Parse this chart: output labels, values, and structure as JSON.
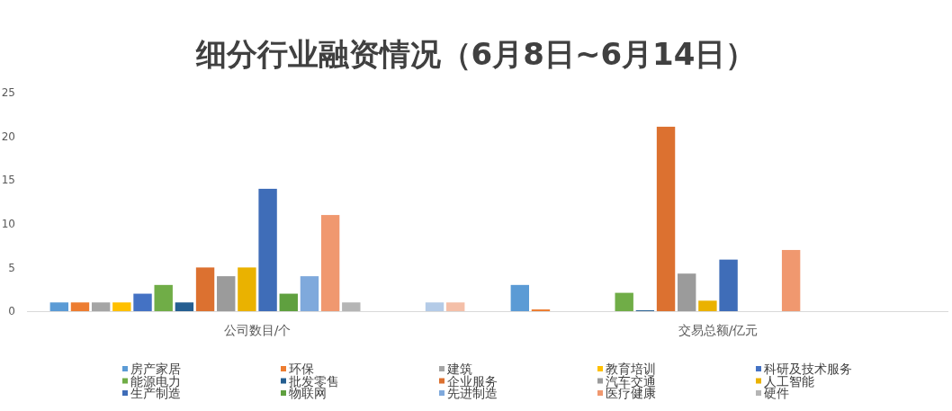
{
  "chart_data": {
    "type": "bar",
    "title": "细分行业融资情况（6月8日~6月14日）",
    "categories": [
      "公司数目/个",
      "交易总额/亿元"
    ],
    "ylim": [
      0,
      25
    ],
    "yticks": [
      0,
      5,
      10,
      15,
      20,
      25
    ],
    "grid": false,
    "legend": "bottom",
    "series": [
      {
        "name": "房产家居",
        "color": "#5b9bd5",
        "values": [
          1,
          3
        ]
      },
      {
        "name": "环保",
        "color": "#ed7d31",
        "values": [
          1,
          0.2
        ]
      },
      {
        "name": "建筑",
        "color": "#a5a5a5",
        "values": [
          1,
          null
        ]
      },
      {
        "name": "教育培训",
        "color": "#ffc000",
        "values": [
          1,
          null
        ]
      },
      {
        "name": "科研及技术服务",
        "color": "#4472c4",
        "values": [
          2,
          null
        ]
      },
      {
        "name": "能源电力",
        "color": "#70ad47",
        "values": [
          3,
          2.1
        ]
      },
      {
        "name": "批发零售",
        "color": "#255e91",
        "values": [
          1,
          0.1
        ]
      },
      {
        "name": "企业服务",
        "color": "#dc7130",
        "values": [
          5,
          21.1
        ]
      },
      {
        "name": "汽车交通",
        "color": "#9b9b9b",
        "values": [
          4,
          4.3
        ]
      },
      {
        "name": "人工智能",
        "color": "#eab200",
        "values": [
          5,
          1.2
        ]
      },
      {
        "name": "生产制造",
        "color": "#3f6db8",
        "values": [
          14,
          5.9
        ]
      },
      {
        "name": "物联网",
        "color": "#5fa03f",
        "values": [
          2,
          null
        ]
      },
      {
        "name": "先进制造",
        "color": "#7fa9dc",
        "values": [
          4,
          null
        ]
      },
      {
        "name": "医疗健康",
        "color": "#f0986f",
        "values": [
          11,
          7
        ]
      },
      {
        "name": "硬件",
        "color": "#b5b5b5",
        "values": [
          1,
          null
        ]
      },
      {
        "values": [
          null,
          null
        ]
      },
      {
        "values": [
          null,
          null
        ]
      },
      {
        "values": [
          null,
          null
        ]
      },
      {
        "color": "#b4cbe7",
        "values": [
          1,
          null
        ]
      },
      {
        "color": "#f4bfa8",
        "values": [
          1,
          null
        ]
      }
    ]
  }
}
